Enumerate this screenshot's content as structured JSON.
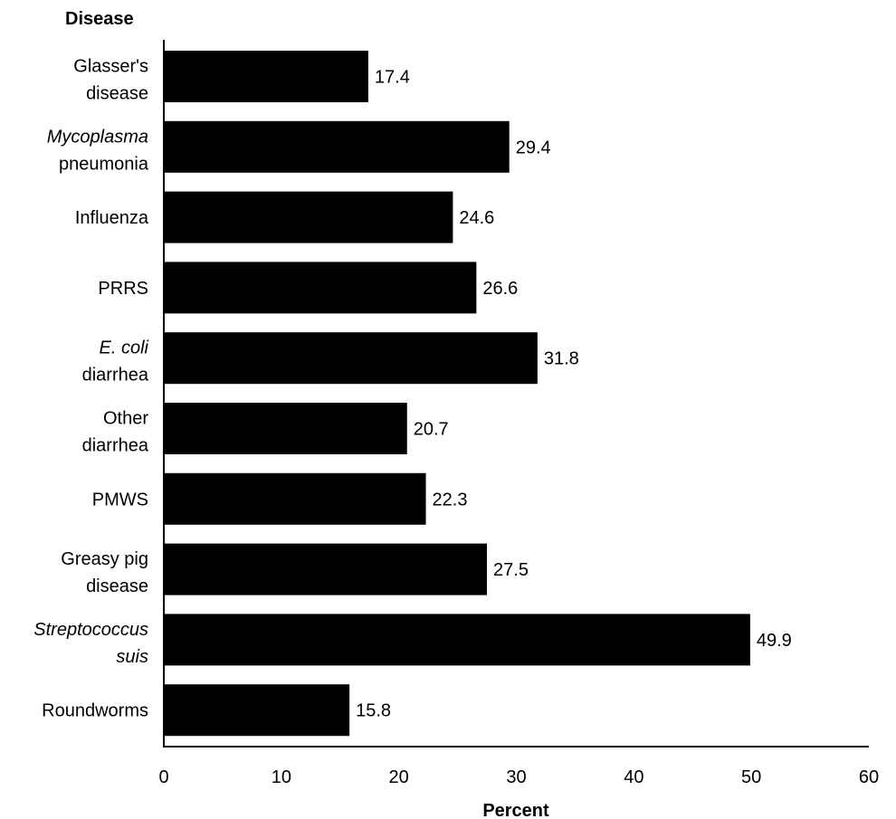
{
  "chart_data": {
    "type": "bar",
    "orientation": "horizontal",
    "ylabel": "Disease",
    "xlabel": "Percent",
    "xlim": [
      0,
      60
    ],
    "xticks": [
      0,
      10,
      20,
      30,
      40,
      50,
      60
    ],
    "bar_color": "#000000",
    "grid": false,
    "categories": [
      {
        "lines": [
          [
            {
              "text": "Glasser's",
              "italic": false
            }
          ],
          [
            {
              "text": "disease",
              "italic": false
            }
          ]
        ]
      },
      {
        "lines": [
          [
            {
              "text": "Mycoplasma",
              "italic": true
            }
          ],
          [
            {
              "text": "pneumonia",
              "italic": false
            }
          ]
        ]
      },
      {
        "lines": [
          [
            {
              "text": "Influenza",
              "italic": false
            }
          ]
        ]
      },
      {
        "lines": [
          [
            {
              "text": "PRRS",
              "italic": false
            }
          ]
        ]
      },
      {
        "lines": [
          [
            {
              "text": "E. coli",
              "italic": true
            }
          ],
          [
            {
              "text": "diarrhea",
              "italic": false
            }
          ]
        ]
      },
      {
        "lines": [
          [
            {
              "text": "Other",
              "italic": false
            }
          ],
          [
            {
              "text": "diarrhea",
              "italic": false
            }
          ]
        ]
      },
      {
        "lines": [
          [
            {
              "text": "PMWS",
              "italic": false
            }
          ]
        ]
      },
      {
        "lines": [
          [
            {
              "text": "Greasy pig",
              "italic": false
            }
          ],
          [
            {
              "text": "disease",
              "italic": false
            }
          ]
        ]
      },
      {
        "lines": [
          [
            {
              "text": "Streptococcus",
              "italic": true
            }
          ],
          [
            {
              "text": "suis",
              "italic": true
            }
          ]
        ]
      },
      {
        "lines": [
          [
            {
              "text": "Roundworms",
              "italic": false
            }
          ]
        ]
      }
    ],
    "values": [
      17.4,
      29.4,
      24.6,
      26.6,
      31.8,
      20.7,
      22.3,
      27.5,
      49.9,
      15.8
    ],
    "value_labels": [
      "17.4",
      "29.4",
      "24.6",
      "26.6",
      "31.8",
      "20.7",
      "22.3",
      "27.5",
      "49.9",
      "15.8"
    ]
  }
}
